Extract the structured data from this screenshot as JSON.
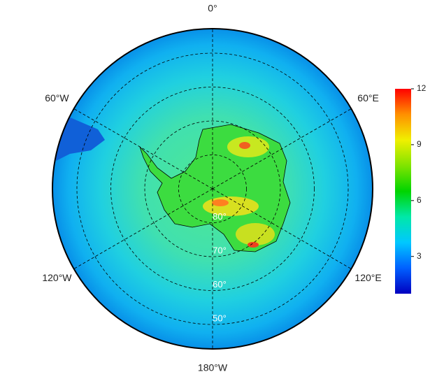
{
  "map": {
    "meridians": [
      {
        "value": 0,
        "label": "0°"
      },
      {
        "value": 60,
        "label": "60°E"
      },
      {
        "value": 120,
        "label": "120°E"
      },
      {
        "value": 180,
        "label": "180°W"
      },
      {
        "value": -120,
        "label": "120°W"
      },
      {
        "value": -60,
        "label": "60°W"
      }
    ],
    "lat_circles": [
      {
        "value": 80,
        "label": "80°"
      },
      {
        "value": 70,
        "label": "70°"
      },
      {
        "value": 60,
        "label": "60°"
      },
      {
        "value": 50,
        "label": "50°"
      }
    ],
    "colorbar": {
      "lim": [
        1,
        12
      ],
      "ticks": [
        3,
        6,
        9,
        12
      ],
      "colormap": [
        "#0000c0",
        "#0060ff",
        "#00c8ff",
        "#00e8a8",
        "#00d400",
        "#80e400",
        "#f0f000",
        "#ff9000",
        "#ff0000"
      ]
    }
  }
}
